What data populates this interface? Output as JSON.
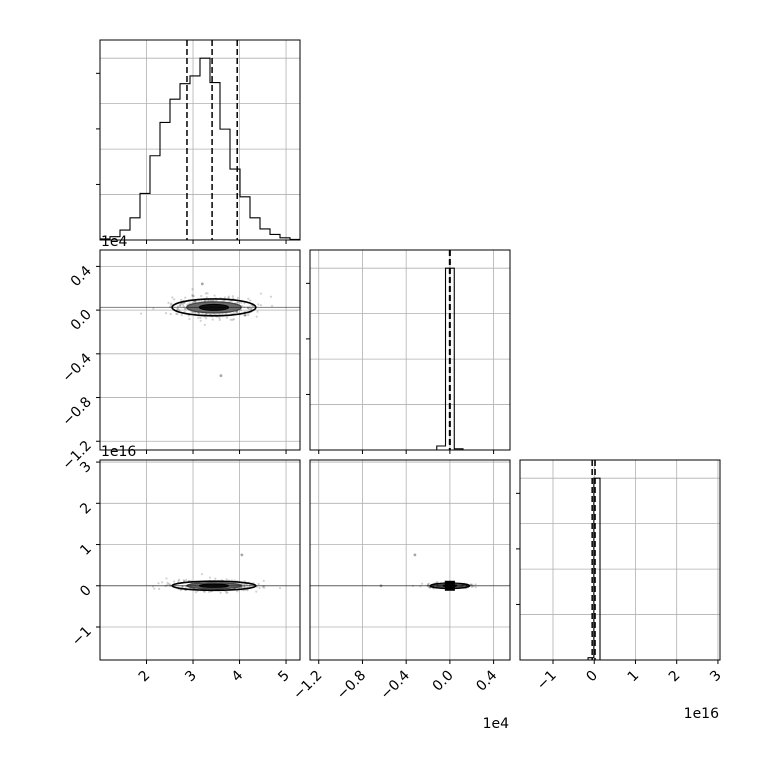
{
  "chart_data": {
    "type": "corner",
    "grid": true,
    "axis_ticks": {
      "p0": [
        "2",
        "3",
        "4",
        "5"
      ],
      "p1": [
        "0.4",
        "0.0",
        "−0.4",
        "−0.8",
        "−1.2"
      ],
      "p2": [
        "3",
        "2",
        "1",
        "0",
        "−1"
      ]
    },
    "axis_ranges": {
      "p0": [
        1.0,
        5.3
      ],
      "p1": [
        -12800,
        5500
      ],
      "p2": [
        -1.8e+16,
        3.05e+16
      ]
    },
    "offset_texts": {
      "p1_row": "1e4",
      "p2_row": "1e16",
      "p1_col": "1e4",
      "p2_col": "1e16"
    },
    "hist_p0": {
      "edges": [
        1.0,
        1.215,
        1.43,
        1.645,
        1.86,
        2.075,
        2.29,
        2.505,
        2.72,
        2.935,
        3.15,
        3.365,
        3.58,
        3.795,
        4.01,
        4.225,
        4.44,
        4.655,
        4.87,
        5.085,
        5.3
      ],
      "counts": [
        0.1,
        0.3,
        0.9,
        2.0,
        4.2,
        7.6,
        10.6,
        12.7,
        14.1,
        14.8,
        16.4,
        14.2,
        10.0,
        6.4,
        3.9,
        2.0,
        1.0,
        0.5,
        0.2,
        0.05
      ],
      "quantiles": [
        2.87,
        3.41,
        3.95
      ]
    },
    "hist_p1": {
      "edges": [
        -1200,
        -400,
        400,
        1200
      ],
      "counts": [
        0.35,
        15.9,
        0.1
      ],
      "quantiles": [
        -30,
        20
      ]
    },
    "hist_p2": {
      "edges": [
        -1500000000000000.0,
        -100000000000000.0,
        1400000000000000.0
      ],
      "counts": [
        0.2,
        15.7
      ],
      "quantiles": [
        -500000000000000.0,
        200000000000000.0
      ]
    },
    "scatter_p0_p1": {
      "center": [
        3.45,
        250
      ],
      "spread": [
        0.45,
        350
      ],
      "outliers": [
        [
          3.6,
          -6000
        ],
        [
          3.2,
          2400
        ]
      ]
    },
    "scatter_p0_p2": {
      "center": [
        3.45,
        0
      ],
      "spread": [
        0.45,
        500000000000000.0
      ],
      "outliers": [
        [
          4.05,
          7500000000000000.0
        ]
      ]
    },
    "scatter_p1_p2": {
      "center": [
        0,
        0
      ],
      "spread": [
        900,
        200000000000000.0
      ],
      "outliers": [
        [
          -3200,
          7500000000000000.0
        ],
        [
          -6300,
          0
        ]
      ]
    }
  }
}
